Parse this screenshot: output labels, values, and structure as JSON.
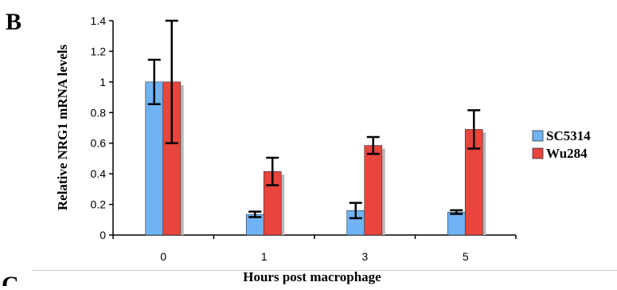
{
  "panel_labels": {
    "main": "B",
    "next": "C"
  },
  "colors": {
    "series_1": "#6fb3f5",
    "series_2": "#e8453c",
    "shadow": "#b8b8b8",
    "axis": "#000000"
  },
  "chart_data": {
    "type": "bar",
    "categories": [
      "0",
      "1",
      "3",
      "5"
    ],
    "series": [
      {
        "name": "SC5314",
        "values": [
          1.0,
          0.135,
          0.16,
          0.15
        ],
        "error": [
          0.145,
          0.018,
          0.05,
          0.012
        ]
      },
      {
        "name": "Wu284",
        "values": [
          1.0,
          0.415,
          0.585,
          0.69
        ],
        "error": [
          0.4,
          0.09,
          0.055,
          0.125
        ]
      }
    ],
    "xlabel": "Hours post macrophage",
    "ylabel": "Relative NRG1 mRNA levels",
    "ylim": [
      0,
      1.4
    ],
    "yticks": [
      "0",
      "0.2",
      "0.4",
      "0.6",
      "0.8",
      "1",
      "1.2",
      "1.4"
    ],
    "grid": false,
    "legend_position": "right"
  }
}
